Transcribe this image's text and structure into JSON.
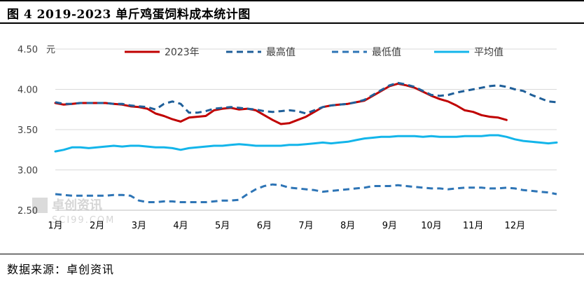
{
  "header": {
    "title": "图 4 2019-2023 单斤鸡蛋饲料成本统计图"
  },
  "footer": {
    "source": "数据来源：卓创资讯"
  },
  "watermark": {
    "text": "卓创资讯",
    "subtext": "SCI99.COM"
  },
  "chart_data": {
    "type": "line",
    "title": "",
    "ylabel": "元",
    "xlabel": "",
    "ylim": [
      2.5,
      4.5
    ],
    "yticks": [
      "2.50",
      "3.00",
      "3.50",
      "4.00",
      "4.50"
    ],
    "xlim": [
      1,
      13
    ],
    "categories": [
      "1月",
      "2月",
      "3月",
      "4月",
      "5月",
      "6月",
      "7月",
      "8月",
      "9月",
      "10月",
      "11月",
      "12月"
    ],
    "grid": true,
    "legend_position": "top",
    "series": [
      {
        "name": "2023年",
        "color": "#c00000",
        "style": "solid",
        "x": [
          1.0,
          1.2,
          1.4,
          1.6,
          1.8,
          2.0,
          2.2,
          2.4,
          2.6,
          2.8,
          3.0,
          3.2,
          3.4,
          3.6,
          3.8,
          4.0,
          4.2,
          4.4,
          4.6,
          4.8,
          5.0,
          5.2,
          5.4,
          5.6,
          5.8,
          6.0,
          6.2,
          6.4,
          6.6,
          6.8,
          7.0,
          7.2,
          7.4,
          7.6,
          7.8,
          8.0,
          8.2,
          8.4,
          8.6,
          8.8,
          9.0,
          9.2,
          9.4,
          9.6,
          9.8,
          10.0,
          10.2,
          10.4,
          10.6,
          10.8,
          11.0,
          11.2,
          11.4,
          11.6,
          11.8
        ],
        "y": [
          3.83,
          3.81,
          3.82,
          3.83,
          3.83,
          3.83,
          3.83,
          3.82,
          3.81,
          3.79,
          3.78,
          3.76,
          3.7,
          3.67,
          3.63,
          3.6,
          3.65,
          3.66,
          3.67,
          3.74,
          3.76,
          3.77,
          3.75,
          3.76,
          3.74,
          3.68,
          3.62,
          3.57,
          3.58,
          3.62,
          3.66,
          3.72,
          3.78,
          3.8,
          3.81,
          3.82,
          3.84,
          3.86,
          3.92,
          3.98,
          4.04,
          4.07,
          4.05,
          4.02,
          3.97,
          3.92,
          3.88,
          3.85,
          3.8,
          3.74,
          3.72,
          3.68,
          3.66,
          3.65,
          3.62
        ]
      },
      {
        "name": "最高值",
        "color": "#1f5f99",
        "style": "dashed",
        "x": [
          1.0,
          1.2,
          1.4,
          1.6,
          1.8,
          2.0,
          2.2,
          2.4,
          2.6,
          2.8,
          3.0,
          3.2,
          3.4,
          3.6,
          3.8,
          4.0,
          4.2,
          4.4,
          4.6,
          4.8,
          5.0,
          5.2,
          5.4,
          5.6,
          5.8,
          6.0,
          6.2,
          6.4,
          6.6,
          6.8,
          7.0,
          7.2,
          7.4,
          7.6,
          7.8,
          8.0,
          8.2,
          8.4,
          8.6,
          8.8,
          9.0,
          9.2,
          9.4,
          9.6,
          9.8,
          10.0,
          10.2,
          10.4,
          10.6,
          10.8,
          11.0,
          11.2,
          11.4,
          11.6,
          11.8,
          12.0,
          12.2,
          12.4,
          12.6,
          12.8,
          13.0
        ],
        "y": [
          3.84,
          3.82,
          3.82,
          3.83,
          3.83,
          3.83,
          3.83,
          3.82,
          3.82,
          3.8,
          3.79,
          3.78,
          3.75,
          3.82,
          3.85,
          3.82,
          3.71,
          3.71,
          3.73,
          3.76,
          3.77,
          3.78,
          3.77,
          3.76,
          3.75,
          3.73,
          3.72,
          3.73,
          3.74,
          3.73,
          3.7,
          3.74,
          3.78,
          3.8,
          3.81,
          3.82,
          3.84,
          3.87,
          3.93,
          3.99,
          4.05,
          4.08,
          4.06,
          4.03,
          3.98,
          3.93,
          3.92,
          3.93,
          3.96,
          3.98,
          4.0,
          4.02,
          4.04,
          4.05,
          4.03,
          4.0,
          3.98,
          3.93,
          3.89,
          3.85,
          3.84
        ]
      },
      {
        "name": "最低值",
        "color": "#2e75b6",
        "style": "dashed",
        "x": [
          1.0,
          1.2,
          1.4,
          1.6,
          1.8,
          2.0,
          2.2,
          2.4,
          2.6,
          2.8,
          3.0,
          3.2,
          3.4,
          3.6,
          3.8,
          4.0,
          4.2,
          4.4,
          4.6,
          4.8,
          5.0,
          5.2,
          5.4,
          5.6,
          5.8,
          6.0,
          6.2,
          6.4,
          6.6,
          6.8,
          7.0,
          7.2,
          7.4,
          7.6,
          7.8,
          8.0,
          8.2,
          8.4,
          8.6,
          8.8,
          9.0,
          9.2,
          9.4,
          9.6,
          9.8,
          10.0,
          10.2,
          10.4,
          10.6,
          10.8,
          11.0,
          11.2,
          11.4,
          11.6,
          11.8,
          12.0,
          12.2,
          12.4,
          12.6,
          12.8,
          13.0
        ],
        "y": [
          2.7,
          2.69,
          2.68,
          2.68,
          2.68,
          2.68,
          2.68,
          2.69,
          2.69,
          2.68,
          2.62,
          2.6,
          2.6,
          2.61,
          2.61,
          2.6,
          2.6,
          2.6,
          2.6,
          2.61,
          2.62,
          2.62,
          2.63,
          2.7,
          2.76,
          2.8,
          2.82,
          2.81,
          2.78,
          2.77,
          2.76,
          2.75,
          2.73,
          2.74,
          2.75,
          2.76,
          2.77,
          2.78,
          2.8,
          2.8,
          2.8,
          2.81,
          2.8,
          2.79,
          2.78,
          2.77,
          2.77,
          2.76,
          2.77,
          2.78,
          2.78,
          2.78,
          2.77,
          2.77,
          2.78,
          2.77,
          2.75,
          2.74,
          2.73,
          2.72,
          2.7
        ]
      },
      {
        "name": "平均值",
        "color": "#13b5ea",
        "style": "solid",
        "x": [
          1.0,
          1.2,
          1.4,
          1.6,
          1.8,
          2.0,
          2.2,
          2.4,
          2.6,
          2.8,
          3.0,
          3.2,
          3.4,
          3.6,
          3.8,
          4.0,
          4.2,
          4.4,
          4.6,
          4.8,
          5.0,
          5.2,
          5.4,
          5.6,
          5.8,
          6.0,
          6.2,
          6.4,
          6.6,
          6.8,
          7.0,
          7.2,
          7.4,
          7.6,
          7.8,
          8.0,
          8.2,
          8.4,
          8.6,
          8.8,
          9.0,
          9.2,
          9.4,
          9.6,
          9.8,
          10.0,
          10.2,
          10.4,
          10.6,
          10.8,
          11.0,
          11.2,
          11.4,
          11.6,
          11.8,
          12.0,
          12.2,
          12.4,
          12.6,
          12.8,
          13.0
        ],
        "y": [
          3.23,
          3.25,
          3.28,
          3.28,
          3.27,
          3.28,
          3.29,
          3.3,
          3.29,
          3.3,
          3.3,
          3.29,
          3.28,
          3.28,
          3.27,
          3.25,
          3.27,
          3.28,
          3.29,
          3.3,
          3.3,
          3.31,
          3.32,
          3.31,
          3.3,
          3.3,
          3.3,
          3.3,
          3.31,
          3.31,
          3.32,
          3.33,
          3.34,
          3.33,
          3.34,
          3.35,
          3.37,
          3.39,
          3.4,
          3.41,
          3.41,
          3.42,
          3.42,
          3.42,
          3.41,
          3.42,
          3.41,
          3.41,
          3.41,
          3.42,
          3.42,
          3.42,
          3.43,
          3.43,
          3.41,
          3.38,
          3.36,
          3.35,
          3.34,
          3.33,
          3.34
        ]
      }
    ]
  }
}
